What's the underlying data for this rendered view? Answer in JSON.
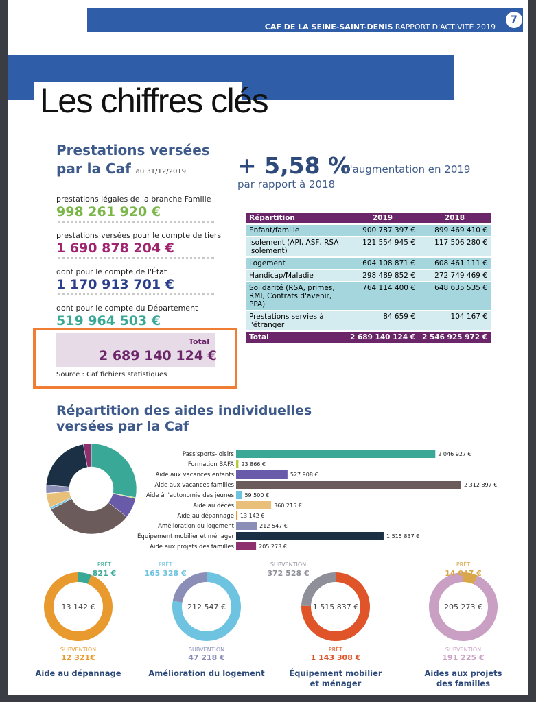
{
  "header": {
    "org": "CAF DE LA SEINE-SAINT-DENIS",
    "report": "RAPPORT D'ACTIVITÉ 2019",
    "page": "7"
  },
  "title": "Les chiffres clés",
  "prestations": {
    "heading_1": "Prestations versées",
    "heading_2": "par la Caf",
    "date": "au 31/12/2019",
    "items": [
      {
        "label": "prestations légales de la branche Famille",
        "amount": "998 261 920 €",
        "color": "#7ab648"
      },
      {
        "label": "prestations versées pour le compte de tiers",
        "amount": "1 690 878 204 €",
        "color": "#a0246f"
      },
      {
        "label": "dont pour le compte de l'État",
        "amount": "1 170 913 701 €",
        "color": "#2b3f8c"
      },
      {
        "label": "dont pour le compte du Département",
        "amount": "519 964 503 €",
        "color": "#3aa897"
      }
    ],
    "total_label": "Total",
    "total": "2 689 140 124 €",
    "source": "Source : Caf fichiers statistiques"
  },
  "growth": {
    "value": "+ 5,58 %",
    "text": "d'augmentation en 2019",
    "text2": "par rapport à 2018"
  },
  "table": {
    "header": [
      "Répartition",
      "2019",
      "2018"
    ],
    "rows": [
      [
        "Enfant/famille",
        "900 787 397 €",
        "899 469 410 €"
      ],
      [
        "Isolement (API, ASF, RSA isolement)",
        "121 554 945 €",
        "117 506 280 €"
      ],
      [
        "Logement",
        "604 108 871 €",
        "608 461 111 €"
      ],
      [
        "Handicap/Maladie",
        "298 489 852 €",
        "272 749 469 €"
      ],
      [
        "Solidarité (RSA, primes, RMI, Contrats d'avenir, PPA)",
        "764 114 400 €",
        "648 635 535 €"
      ],
      [
        "Prestations servies à l'étranger",
        "84 659 €",
        "104 167 €"
      ]
    ],
    "total": [
      "Total",
      "2 689 140 124 €",
      "2 546 925 972 €"
    ]
  },
  "aides": {
    "title_1": "Répartition des aides individuelles",
    "title_2": "versées par la Caf",
    "bars": {
      "categories": [
        "Pass'sports-loisirs",
        "Formation BAFA",
        "Aide aux vacances enfants",
        "Aide aux vacances familles",
        "Aide à l'autonomie des jeunes",
        "Aide au décès",
        "Aide au dépannage",
        "Amélioration du logement",
        "Équipement mobilier et ménager",
        "Aide aux projets des familles"
      ],
      "values": [
        2046927,
        23866,
        527908,
        2312897,
        59500,
        360215,
        13142,
        212547,
        1515837,
        205273
      ],
      "value_labels": [
        "2 046 927 €",
        "23 866 €",
        "527 908 €",
        "2 312 897 €",
        "59 500 €",
        "360 215 €",
        "13 142 €",
        "212 547 €",
        "1 515 837 €",
        "205 273 €"
      ],
      "colors": [
        "#3aa897",
        "#b5cc3a",
        "#6a5aaa",
        "#6b5b5a",
        "#6ec3e0",
        "#e8c079",
        "#e89a2e",
        "#8b8fb8",
        "#1b2f45",
        "#8e2f6e"
      ]
    },
    "donuts": [
      {
        "center": "13 142 €",
        "caption": [
          "Aide au dépannage"
        ],
        "segments": [
          {
            "name": "PRÊT",
            "value": 821,
            "label": "821 €",
            "color": "#3aa897"
          },
          {
            "name": "SUBVENTION",
            "value": 12321,
            "label": "12 321€",
            "color": "#e89a2e"
          }
        ]
      },
      {
        "center": "212 547 €",
        "caption": [
          "Amélioration du logement"
        ],
        "segments": [
          {
            "name": "PRÊT",
            "value": 165328,
            "label": "165 328 €",
            "color": "#6ec3e0"
          },
          {
            "name": "SUBVENTION",
            "value": 47218,
            "label": "47 218 €",
            "color": "#8b8fb8"
          }
        ]
      },
      {
        "center": "1 515 837 €",
        "caption": [
          "Équipement mobilier",
          "et ménager"
        ],
        "segments": [
          {
            "name": "PRÊT",
            "value": 1143308,
            "label": "1 143 308 €",
            "color": "#e0542a"
          },
          {
            "name": "SUBVENTION",
            "value": 372528,
            "label": "372 528 €",
            "color": "#8f8f9a"
          }
        ]
      },
      {
        "center": "205 273 €",
        "caption": [
          "Aides aux projets",
          "des familles"
        ],
        "segments": [
          {
            "name": "PRÊT",
            "value": 14047,
            "label": "14 047 €",
            "color": "#d9a74a"
          },
          {
            "name": "SUBVENTION",
            "value": 191225,
            "label": "191 225 €",
            "color": "#c9a0c4"
          }
        ]
      }
    ]
  }
}
